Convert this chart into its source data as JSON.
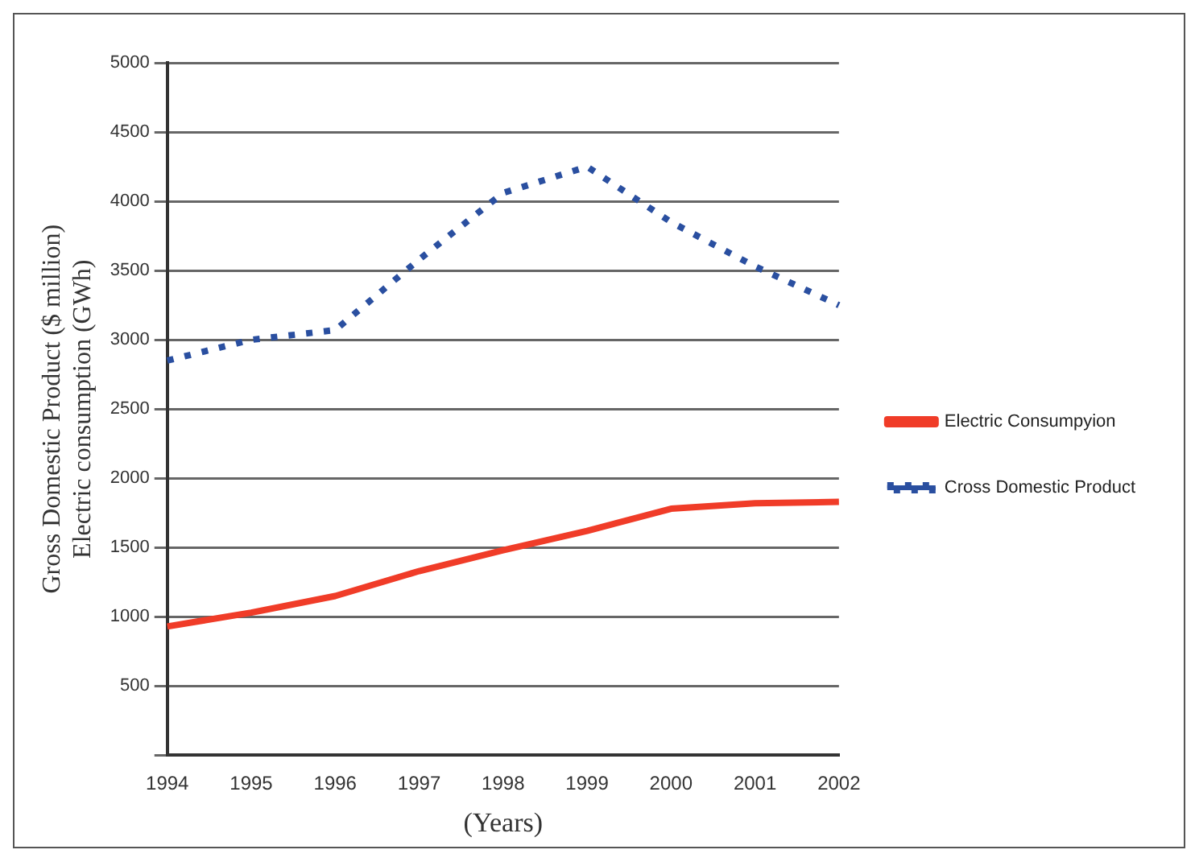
{
  "chart_data": {
    "type": "line",
    "xlabel": "(Years)",
    "ylabel": "Gross Domestic Product ($ million)\nElectric consumption (GWh)",
    "categories": [
      "1994",
      "1995",
      "1996",
      "1997",
      "1998",
      "1999",
      "2000",
      "2001",
      "2002"
    ],
    "series": [
      {
        "name": "Electric Consumpyion",
        "color": "#f03c28",
        "line_style": "solid",
        "values": [
          930,
          1030,
          1150,
          1330,
          1480,
          1620,
          1780,
          1820,
          1830
        ]
      },
      {
        "name": "Cross Domestic Product",
        "color": "#2a4fa0",
        "line_style": "dotted",
        "values": [
          2850,
          3000,
          3070,
          3580,
          4060,
          4250,
          3850,
          3530,
          3250
        ]
      }
    ],
    "ylim": [
      0,
      5000
    ],
    "yticks": [
      {
        "value": 0,
        "label": null
      },
      500,
      1000,
      1500,
      2000,
      2500,
      3000,
      3500,
      4000,
      4500,
      5000
    ],
    "grid": "y",
    "legend": "right",
    "marker": "none"
  }
}
